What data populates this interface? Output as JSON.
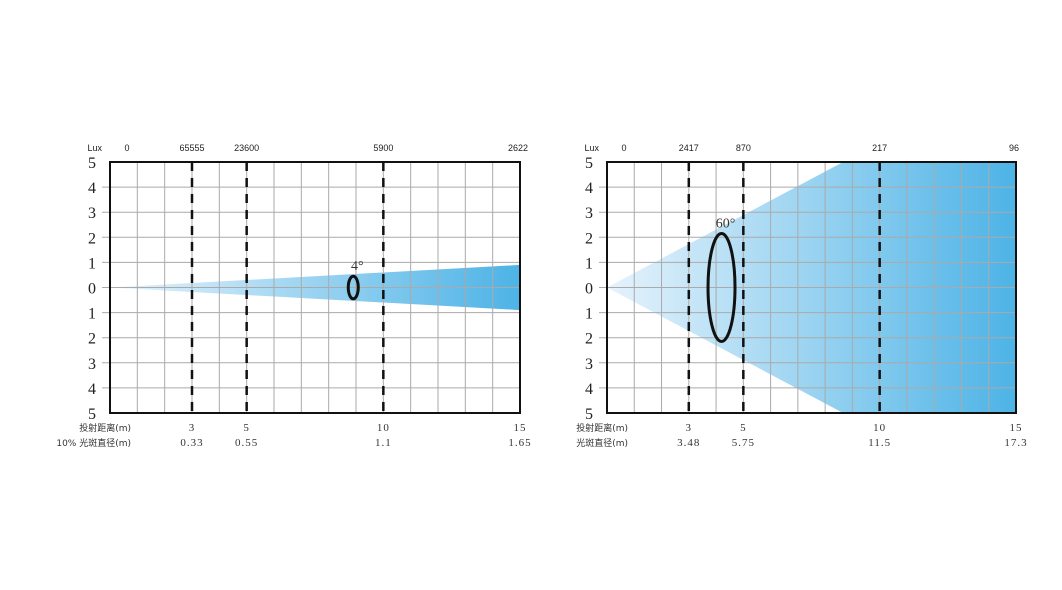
{
  "chart_data": [
    {
      "type": "beam-diagram",
      "beam_angle_label": "4°",
      "lux_label": "Lux",
      "lux_zero": "0",
      "distance_label": "投射距离(m)",
      "diameter_label": "10% 光斑直径(m)",
      "distances": [
        3,
        5,
        10,
        15
      ],
      "lux": [
        "65555",
        "23600",
        "5900",
        "2622"
      ],
      "diameters": [
        "0.33",
        "0.55",
        "1.1",
        "1.65"
      ],
      "xlim": [
        0,
        15
      ],
      "ylim": [
        -5,
        5
      ],
      "y_ticks": [
        "5",
        "4",
        "3",
        "2",
        "1",
        "0",
        "1",
        "2",
        "3",
        "4",
        "5"
      ],
      "grid": true,
      "beam_half_width_at_15": 0.9,
      "ellipse_at": 8.9,
      "ellipse_half_height": 0.45,
      "color": "#4db3e6"
    },
    {
      "type": "beam-diagram",
      "beam_angle_label": "60°",
      "lux_label": "Lux",
      "lux_zero": "0",
      "distance_label": "投射距离(m)",
      "diameter_label": "光斑直径(m)",
      "distances": [
        3,
        5,
        10,
        15
      ],
      "lux": [
        "2417",
        "870",
        "217",
        "96"
      ],
      "diameters": [
        "3.48",
        "5.75",
        "11.5",
        "17.3"
      ],
      "xlim": [
        0,
        15
      ],
      "ylim": [
        -5,
        5
      ],
      "y_ticks": [
        "5",
        "4",
        "3",
        "2",
        "1",
        "0",
        "1",
        "2",
        "3",
        "4",
        "5"
      ],
      "grid": true,
      "beam_half_width_at_15": 8.66,
      "ellipse_at": 4.2,
      "ellipse_half_height": 2.15,
      "color": "#4db3e6"
    }
  ]
}
